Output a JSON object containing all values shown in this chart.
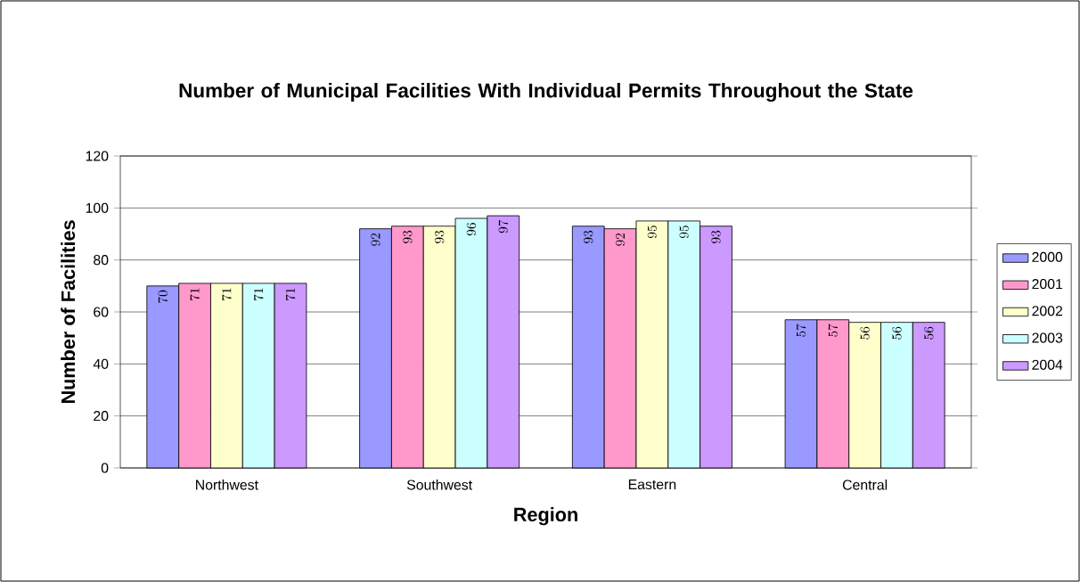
{
  "chart_data": {
    "type": "bar",
    "title": "Number of Municipal Facilities With Individual Permits Throughout the State",
    "xlabel": "Region",
    "ylabel": "Number of Facilities",
    "categories": [
      "Northwest",
      "Southwest",
      "Eastern",
      "Central"
    ],
    "series": [
      {
        "name": "2000",
        "color": "#9999ff",
        "values": [
          70,
          92,
          93,
          57
        ]
      },
      {
        "name": "2001",
        "color": "#ff99cc",
        "values": [
          71,
          93,
          92,
          57
        ]
      },
      {
        "name": "2002",
        "color": "#ffffcc",
        "values": [
          71,
          93,
          95,
          56
        ]
      },
      {
        "name": "2003",
        "color": "#ccffff",
        "values": [
          71,
          96,
          95,
          56
        ]
      },
      {
        "name": "2004",
        "color": "#cc99ff",
        "values": [
          71,
          97,
          93,
          56
        ]
      }
    ],
    "ylim": [
      0,
      120
    ],
    "yticks": [
      0,
      20,
      40,
      60,
      80,
      100,
      120
    ],
    "grid": "y",
    "legend": "right",
    "data_labels": true
  }
}
